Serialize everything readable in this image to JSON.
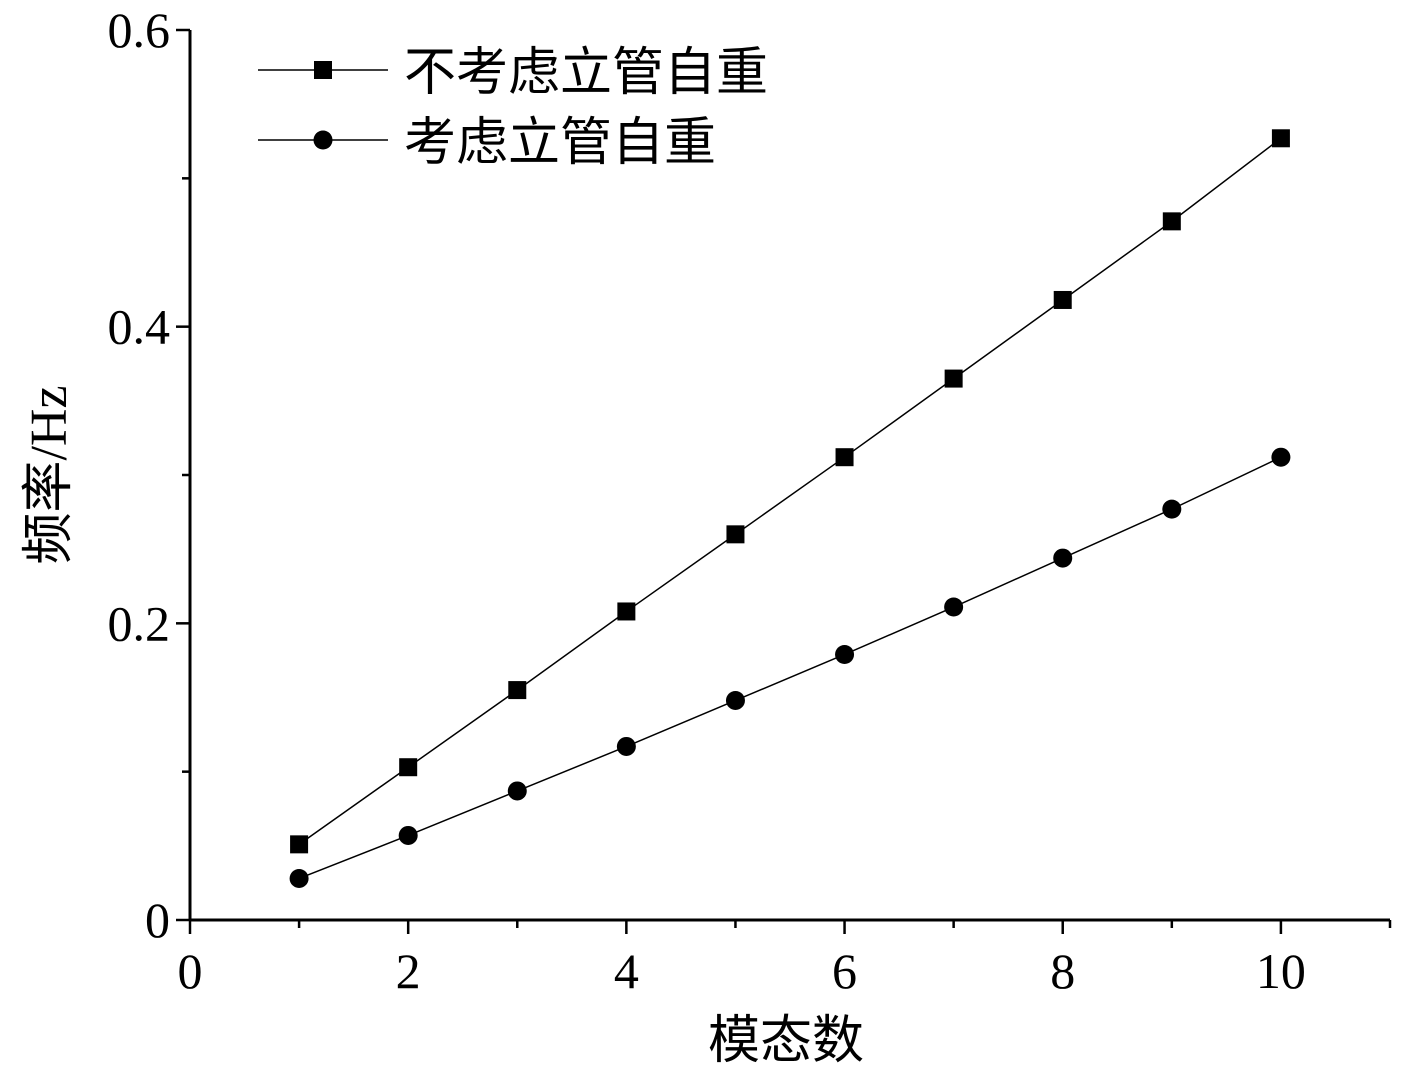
{
  "chart_data": {
    "type": "line",
    "title": "",
    "xlabel": "模态数",
    "ylabel": "频率/Hz",
    "xlim": [
      0,
      11
    ],
    "ylim": [
      0,
      0.6
    ],
    "xticks": [
      "0",
      "2",
      "4",
      "6",
      "8",
      "10"
    ],
    "yticks": [
      "0",
      "0.2",
      "0.4",
      "0.6"
    ],
    "grid": false,
    "legend_position": "top-left",
    "x": [
      1,
      2,
      3,
      4,
      5,
      6,
      7,
      8,
      9,
      10
    ],
    "series": [
      {
        "name": "不考虑立管自重",
        "marker": "square",
        "color": "#000000",
        "values": [
          0.051,
          0.103,
          0.155,
          0.208,
          0.26,
          0.312,
          0.365,
          0.418,
          0.471,
          0.527
        ]
      },
      {
        "name": "考虑立管自重",
        "marker": "circle",
        "color": "#000000",
        "values": [
          0.028,
          0.057,
          0.087,
          0.117,
          0.148,
          0.179,
          0.211,
          0.244,
          0.277,
          0.312
        ]
      }
    ]
  }
}
